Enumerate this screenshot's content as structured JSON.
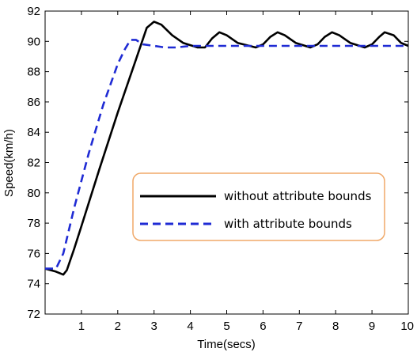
{
  "chart_data": {
    "type": "line",
    "xlabel": "Time(secs)",
    "ylabel": "Speed(km/h)",
    "xlim": [
      0,
      10
    ],
    "ylim": [
      72,
      92
    ],
    "x_ticks": [
      1,
      2,
      3,
      4,
      5,
      6,
      7,
      8,
      9,
      10
    ],
    "y_ticks": [
      72,
      74,
      76,
      78,
      80,
      82,
      84,
      86,
      88,
      90,
      92
    ],
    "grid": false,
    "legend_position": "center-right",
    "series": [
      {
        "name": "without attribute bounds",
        "color": "#000000",
        "style": "solid",
        "points": [
          [
            0,
            75.0
          ],
          [
            0.3,
            74.8
          ],
          [
            0.5,
            74.6
          ],
          [
            0.6,
            74.9
          ],
          [
            0.8,
            76.3
          ],
          [
            1.0,
            77.8
          ],
          [
            1.5,
            81.6
          ],
          [
            2.0,
            85.3
          ],
          [
            2.5,
            88.8
          ],
          [
            2.8,
            90.9
          ],
          [
            3.0,
            91.3
          ],
          [
            3.2,
            91.1
          ],
          [
            3.5,
            90.4
          ],
          [
            3.8,
            89.9
          ],
          [
            4.2,
            89.6
          ],
          [
            4.4,
            89.6
          ],
          [
            4.6,
            90.2
          ],
          [
            4.8,
            90.6
          ],
          [
            5.0,
            90.4
          ],
          [
            5.3,
            89.9
          ],
          [
            5.8,
            89.6
          ],
          [
            6.0,
            89.8
          ],
          [
            6.2,
            90.3
          ],
          [
            6.4,
            90.6
          ],
          [
            6.6,
            90.4
          ],
          [
            6.9,
            89.9
          ],
          [
            7.3,
            89.6
          ],
          [
            7.5,
            89.8
          ],
          [
            7.7,
            90.3
          ],
          [
            7.9,
            90.6
          ],
          [
            8.1,
            90.4
          ],
          [
            8.4,
            89.9
          ],
          [
            8.8,
            89.6
          ],
          [
            9.0,
            89.8
          ],
          [
            9.2,
            90.3
          ],
          [
            9.35,
            90.6
          ],
          [
            9.6,
            90.4
          ],
          [
            9.8,
            89.9
          ],
          [
            10.0,
            89.7
          ]
        ]
      },
      {
        "name": "with attribute bounds",
        "color": "#1f2bd4",
        "style": "dashed",
        "points": [
          [
            0,
            75.0
          ],
          [
            0.3,
            75.0
          ],
          [
            0.5,
            76.0
          ],
          [
            0.8,
            79.0
          ],
          [
            1.2,
            82.6
          ],
          [
            1.6,
            85.8
          ],
          [
            2.0,
            88.5
          ],
          [
            2.2,
            89.5
          ],
          [
            2.35,
            90.1
          ],
          [
            2.5,
            90.1
          ],
          [
            2.7,
            89.8
          ],
          [
            3.0,
            89.7
          ],
          [
            3.3,
            89.6
          ],
          [
            3.6,
            89.6
          ],
          [
            4.0,
            89.7
          ],
          [
            5.0,
            89.7
          ],
          [
            6.0,
            89.7
          ],
          [
            7.0,
            89.7
          ],
          [
            8.0,
            89.7
          ],
          [
            9.0,
            89.7
          ],
          [
            10.0,
            89.7
          ]
        ]
      }
    ]
  }
}
